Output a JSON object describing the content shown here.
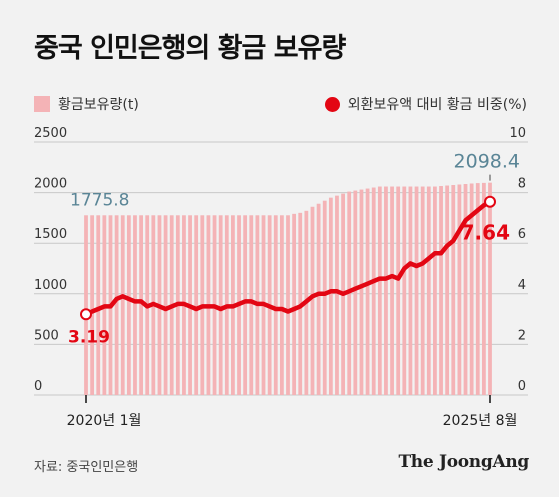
{
  "title": "중국 인민은행의 황금 보유량",
  "source": "자료: 중국인민은행",
  "logo": "The JoongAng",
  "colors": {
    "bars": "#f4b3b6",
    "line": "#e30613",
    "label_left": "#5a8596"
  },
  "chart_data": {
    "type": "bar+line",
    "x": {
      "start_label": "2020년 1월",
      "end_label": "2025년 8월"
    },
    "y_left": {
      "ticks": [
        0,
        500,
        1000,
        1500,
        2000,
        2500
      ],
      "range": [
        0,
        2500
      ],
      "unit": "t"
    },
    "y_right": {
      "ticks": [
        0,
        2,
        4,
        6,
        8,
        10
      ],
      "range": [
        0,
        10
      ],
      "unit": "%"
    },
    "gridlines": true,
    "series": [
      {
        "name": "황금보유량(t)",
        "type": "bar",
        "axis": "left",
        "values": [
          1775.8,
          1775.8,
          1775.8,
          1775.8,
          1775.8,
          1775.8,
          1775.8,
          1775.8,
          1775.8,
          1775.8,
          1775.8,
          1775.8,
          1775.8,
          1775.8,
          1775.8,
          1775.8,
          1775.8,
          1775.8,
          1775.8,
          1775.8,
          1775.8,
          1775.8,
          1775.8,
          1775.8,
          1775.8,
          1775.8,
          1775.8,
          1775.8,
          1775.8,
          1775.8,
          1775.8,
          1775.8,
          1775.8,
          1775.8,
          1790,
          1800,
          1820,
          1860,
          1890,
          1920,
          1950,
          1970,
          1990,
          2010,
          2020,
          2030,
          2040,
          2050,
          2060,
          2060,
          2060,
          2060,
          2060,
          2060,
          2060,
          2060,
          2060,
          2060,
          2065,
          2070,
          2075,
          2080,
          2085,
          2090,
          2094,
          2096,
          2098.4
        ],
        "first_label": "1775.8",
        "last_label": "2098.4"
      },
      {
        "name": "외환보유액 대비 황금 비중(%)",
        "type": "line",
        "axis": "right",
        "values": [
          3.19,
          3.3,
          3.4,
          3.5,
          3.5,
          3.8,
          3.9,
          3.8,
          3.7,
          3.7,
          3.5,
          3.6,
          3.5,
          3.4,
          3.5,
          3.6,
          3.6,
          3.5,
          3.4,
          3.5,
          3.5,
          3.5,
          3.4,
          3.5,
          3.5,
          3.6,
          3.7,
          3.7,
          3.6,
          3.6,
          3.5,
          3.4,
          3.4,
          3.3,
          3.4,
          3.5,
          3.7,
          3.9,
          4.0,
          4.0,
          4.1,
          4.1,
          4.0,
          4.1,
          4.2,
          4.3,
          4.4,
          4.5,
          4.6,
          4.6,
          4.7,
          4.6,
          5.0,
          5.2,
          5.1,
          5.2,
          5.4,
          5.6,
          5.6,
          5.9,
          6.1,
          6.5,
          6.9,
          7.1,
          7.3,
          7.5,
          7.64
        ],
        "first_label": "3.19",
        "last_label": "7.64"
      }
    ]
  }
}
